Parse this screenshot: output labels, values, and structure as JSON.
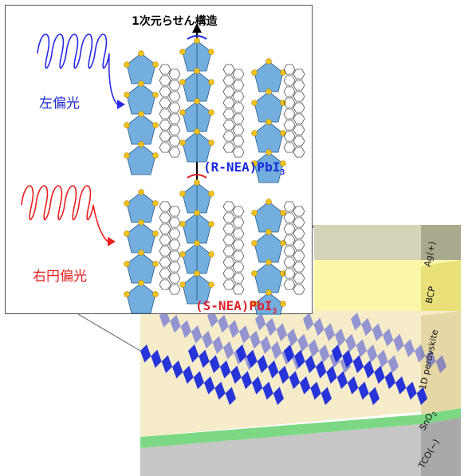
{
  "inset": {
    "title": "1次元らせん構造",
    "left_polarized": "左偏光",
    "right_polarized": "右円偏光",
    "r_compound": "(R-NEA)PbI",
    "s_compound": "(S-NEA)PbI",
    "subscript": "3"
  },
  "device": {
    "layers": [
      {
        "label": "Ag(+)",
        "color": "#d4d4b8"
      },
      {
        "label": "BCP",
        "color": "#fbf6a8"
      },
      {
        "label": "1D perovskite",
        "color": "#f6ecca"
      },
      {
        "label": "SnO",
        "label_sub": "2",
        "color": "#7cd884"
      },
      {
        "label": "TCO(−)",
        "color": "#c6c6c6"
      }
    ]
  },
  "colors": {
    "octahedra": "#5aa0d8",
    "iodide": "#f3c21a",
    "chain": "#1a2ad8",
    "left_light": "#2a2ae0",
    "right_light": "#e82020"
  }
}
